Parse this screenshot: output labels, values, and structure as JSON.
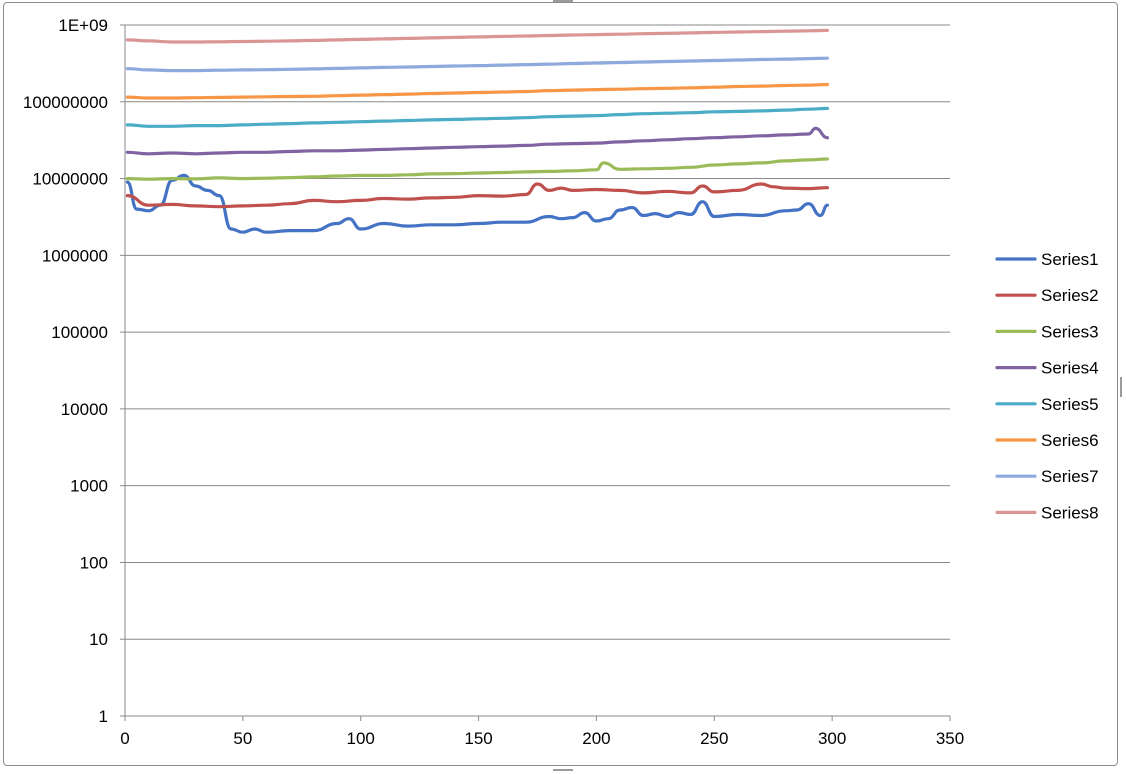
{
  "chart_data": {
    "type": "line",
    "title": "",
    "xlabel": "",
    "ylabel": "",
    "xlim": [
      0,
      350
    ],
    "x_ticks": [
      0,
      50,
      100,
      150,
      200,
      250,
      300,
      350
    ],
    "x_tick_labels": [
      "0",
      "50",
      "100",
      "150",
      "200",
      "250",
      "300",
      "350"
    ],
    "y_scale": "log",
    "ylim": [
      1,
      1000000000
    ],
    "y_ticks": [
      1,
      10,
      100,
      1000,
      10000,
      100000,
      1000000,
      10000000,
      100000000,
      1000000000
    ],
    "y_tick_labels": [
      "1",
      "10",
      "100",
      "1000",
      "10000",
      "100000",
      "1000000",
      "10000000",
      "100000000",
      "1E+09"
    ],
    "grid": true,
    "legend_position": "right",
    "series": [
      {
        "name": "Series1",
        "color": "#4472C4",
        "x": [
          1,
          5,
          10,
          15,
          20,
          25,
          30,
          35,
          40,
          45,
          50,
          55,
          60,
          70,
          80,
          90,
          95,
          100,
          110,
          120,
          130,
          140,
          150,
          160,
          170,
          180,
          185,
          190,
          195,
          200,
          205,
          210,
          215,
          220,
          225,
          230,
          235,
          240,
          245,
          250,
          260,
          270,
          280,
          285,
          290,
          295,
          298
        ],
        "y": [
          9000000,
          4000000,
          3800000,
          4500000,
          9500000,
          11000000,
          8000000,
          7000000,
          6000000,
          2200000,
          2000000,
          2200000,
          2000000,
          2100000,
          2100000,
          2600000,
          3000000,
          2200000,
          2600000,
          2400000,
          2500000,
          2500000,
          2600000,
          2700000,
          2700000,
          3200000,
          3000000,
          3100000,
          3600000,
          2800000,
          3000000,
          3900000,
          4200000,
          3300000,
          3500000,
          3200000,
          3600000,
          3400000,
          5000000,
          3200000,
          3400000,
          3300000,
          3800000,
          3900000,
          4700000,
          3300000,
          4500000
        ]
      },
      {
        "name": "Series2",
        "color": "#C0504D",
        "x": [
          1,
          10,
          20,
          30,
          40,
          50,
          60,
          70,
          80,
          90,
          100,
          110,
          120,
          130,
          140,
          150,
          160,
          170,
          175,
          180,
          185,
          190,
          200,
          210,
          220,
          230,
          240,
          245,
          250,
          260,
          270,
          275,
          280,
          290,
          298
        ],
        "y": [
          6000000,
          4500000,
          4600000,
          4400000,
          4300000,
          4400000,
          4500000,
          4700000,
          5200000,
          5000000,
          5200000,
          5500000,
          5400000,
          5600000,
          5700000,
          6000000,
          5900000,
          6200000,
          8500000,
          7000000,
          7500000,
          7000000,
          7200000,
          7000000,
          6500000,
          6800000,
          6500000,
          8000000,
          6700000,
          7000000,
          8500000,
          7800000,
          7500000,
          7400000,
          7600000
        ]
      },
      {
        "name": "Series3",
        "color": "#9BBB59",
        "x": [
          1,
          10,
          20,
          30,
          40,
          50,
          60,
          70,
          80,
          90,
          100,
          110,
          120,
          130,
          140,
          150,
          160,
          170,
          180,
          190,
          200,
          203,
          210,
          220,
          230,
          240,
          250,
          260,
          270,
          280,
          290,
          298
        ],
        "y": [
          10000000,
          9800000,
          10000000,
          9900000,
          10200000,
          10000000,
          10100000,
          10300000,
          10500000,
          10800000,
          11000000,
          11000000,
          11200000,
          11500000,
          11600000,
          11800000,
          12000000,
          12200000,
          12400000,
          12600000,
          13000000,
          16000000,
          13200000,
          13400000,
          13600000,
          14000000,
          15000000,
          15500000,
          16000000,
          17000000,
          17500000,
          18000000
        ]
      },
      {
        "name": "Series4",
        "color": "#8064A2",
        "x": [
          1,
          10,
          20,
          30,
          40,
          50,
          60,
          70,
          80,
          90,
          100,
          110,
          120,
          130,
          140,
          150,
          160,
          170,
          180,
          190,
          200,
          210,
          220,
          230,
          240,
          250,
          260,
          270,
          280,
          290,
          293,
          298
        ],
        "y": [
          22000000,
          21000000,
          21500000,
          21000000,
          21500000,
          22000000,
          22000000,
          22500000,
          23000000,
          23000000,
          23500000,
          24000000,
          24500000,
          25000000,
          25500000,
          26000000,
          26500000,
          27000000,
          28000000,
          28500000,
          29000000,
          30000000,
          31000000,
          32000000,
          33000000,
          34000000,
          35000000,
          36000000,
          37000000,
          38000000,
          45000000,
          34000000
        ]
      },
      {
        "name": "Series5",
        "color": "#4BACC6",
        "x": [
          1,
          10,
          20,
          30,
          40,
          50,
          60,
          70,
          80,
          90,
          100,
          110,
          120,
          130,
          140,
          150,
          160,
          170,
          180,
          190,
          200,
          210,
          220,
          230,
          240,
          250,
          260,
          270,
          280,
          290,
          298
        ],
        "y": [
          50000000,
          48000000,
          48000000,
          49000000,
          49000000,
          50000000,
          51000000,
          52000000,
          53000000,
          54000000,
          55000000,
          56000000,
          57000000,
          58000000,
          59000000,
          60000000,
          61000000,
          62000000,
          64000000,
          65000000,
          66000000,
          68000000,
          70000000,
          71000000,
          72000000,
          74000000,
          75000000,
          76000000,
          78000000,
          80000000,
          82000000
        ]
      },
      {
        "name": "Series6",
        "color": "#F79646",
        "x": [
          1,
          10,
          20,
          30,
          40,
          50,
          60,
          70,
          80,
          90,
          100,
          110,
          120,
          130,
          140,
          150,
          160,
          170,
          180,
          190,
          200,
          210,
          220,
          230,
          240,
          250,
          260,
          270,
          280,
          290,
          298
        ],
        "y": [
          115000000,
          112000000,
          112000000,
          113000000,
          114000000,
          115000000,
          116000000,
          117000000,
          118000000,
          120000000,
          122000000,
          124000000,
          126000000,
          128000000,
          130000000,
          132000000,
          134000000,
          136000000,
          140000000,
          142000000,
          144000000,
          146000000,
          148000000,
          150000000,
          152000000,
          155000000,
          158000000,
          160000000,
          163000000,
          165000000,
          168000000
        ]
      },
      {
        "name": "Series7",
        "color": "#8EA9DB",
        "x": [
          1,
          10,
          20,
          30,
          40,
          50,
          60,
          70,
          80,
          90,
          100,
          110,
          120,
          130,
          140,
          150,
          160,
          170,
          180,
          190,
          200,
          210,
          220,
          230,
          240,
          250,
          260,
          270,
          280,
          290,
          298
        ],
        "y": [
          270000000,
          260000000,
          255000000,
          255000000,
          258000000,
          260000000,
          262000000,
          265000000,
          268000000,
          272000000,
          276000000,
          280000000,
          284000000,
          288000000,
          292000000,
          296000000,
          300000000,
          305000000,
          310000000,
          315000000,
          320000000,
          325000000,
          330000000,
          335000000,
          340000000,
          345000000,
          350000000,
          355000000,
          360000000,
          365000000,
          370000000
        ]
      },
      {
        "name": "Series8",
        "color": "#DA9694",
        "x": [
          1,
          10,
          20,
          30,
          40,
          50,
          60,
          70,
          80,
          90,
          100,
          110,
          120,
          130,
          140,
          150,
          160,
          170,
          180,
          190,
          200,
          210,
          220,
          230,
          240,
          250,
          260,
          270,
          280,
          290,
          298
        ],
        "y": [
          640000000,
          620000000,
          600000000,
          600000000,
          605000000,
          610000000,
          615000000,
          620000000,
          630000000,
          640000000,
          650000000,
          660000000,
          670000000,
          680000000,
          690000000,
          700000000,
          710000000,
          720000000,
          730000000,
          740000000,
          750000000,
          760000000,
          770000000,
          780000000,
          790000000,
          800000000,
          810000000,
          820000000,
          830000000,
          840000000,
          850000000
        ]
      }
    ]
  }
}
